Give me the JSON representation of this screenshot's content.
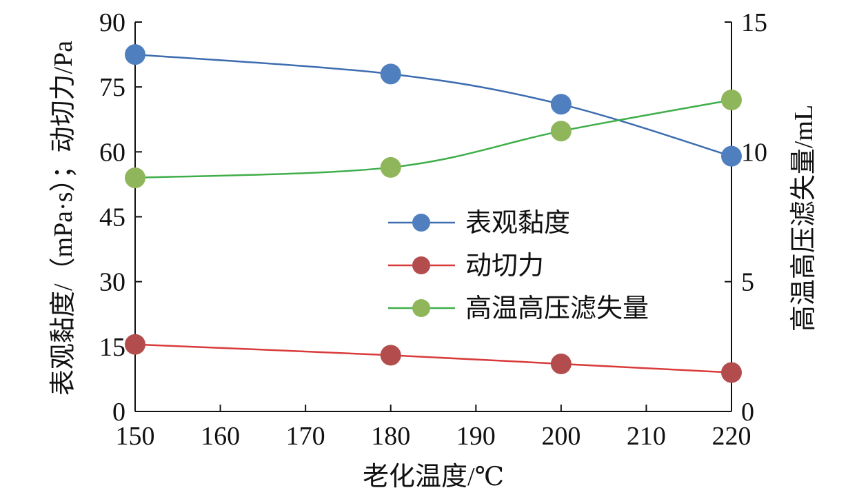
{
  "chart_data": {
    "type": "line",
    "title": "",
    "xlabel": "老化温度/℃",
    "ylabel_left": "表观黏度/（mPa·s）；动切力/Pa",
    "ylabel_right": "高温高压滤失量/mL",
    "xlim": [
      150,
      220
    ],
    "ylim_left": [
      0,
      90
    ],
    "ylim_right": [
      0,
      15
    ],
    "x_ticks": [
      "150",
      "160",
      "170",
      "180",
      "190",
      "200",
      "210",
      "220"
    ],
    "y_left_ticks": [
      "0",
      "15",
      "30",
      "45",
      "60",
      "75",
      "90"
    ],
    "y_right_ticks": [
      "0",
      "5",
      "10",
      "15"
    ],
    "x": [
      150,
      180,
      200,
      220
    ],
    "series": [
      {
        "name": "表观黏度",
        "axis": "left",
        "color": "#3d6db0",
        "marker_color": "#4f7fbf",
        "values": [
          82.5,
          78,
          71,
          59
        ]
      },
      {
        "name": "动切力",
        "axis": "left",
        "color": "#d93a3a",
        "marker_color": "#b34d4d",
        "values": [
          15.5,
          13,
          11,
          9
        ]
      },
      {
        "name": "高温高压滤失量",
        "axis": "right",
        "color": "#3fae4a",
        "marker_color": "#8fb65a",
        "values": [
          9,
          9.4,
          10.8,
          12
        ]
      }
    ],
    "legend_position": "center-right",
    "grid": false
  }
}
